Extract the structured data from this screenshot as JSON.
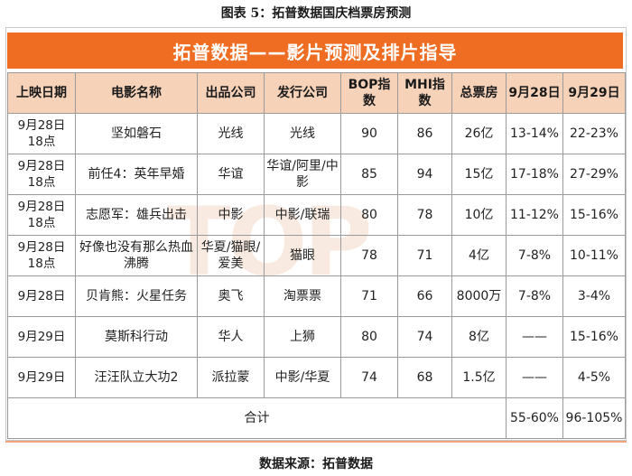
{
  "figure_title": "图表 5：拓普数据国庆档票房预测",
  "banner_title": "拓普数据——影片预测及排片指导",
  "watermark": "TOP",
  "columns": [
    "上映日期",
    "电影名称",
    "出品公司",
    "发行公司",
    "BOP指数",
    "MHI指数",
    "总票房",
    "9月28日",
    "9月29日"
  ],
  "rows": [
    {
      "date": "9月28日 18点",
      "film": "坚如磐石",
      "producer": "光线",
      "distributor": "光线",
      "bop": "90",
      "mhi": "86",
      "box_office": "26亿",
      "sep28": "13-14%",
      "sep29": "22-23%"
    },
    {
      "date": "9月28日 18点",
      "film": "前任4：英年早婚",
      "producer": "华谊",
      "distributor": "华谊/阿里/中影",
      "bop": "85",
      "mhi": "94",
      "box_office": "15亿",
      "sep28": "17-18%",
      "sep29": "27-29%"
    },
    {
      "date": "9月28日 18点",
      "film": "志愿军：雄兵出击",
      "producer": "中影",
      "distributor": "中影/联瑞",
      "bop": "80",
      "mhi": "78",
      "box_office": "10亿",
      "sep28": "11-12%",
      "sep29": "15-16%"
    },
    {
      "date": "9月28日 18点",
      "film": "好像也没有那么热血沸腾",
      "producer": "华夏/猫眼/爱美",
      "distributor": "猫眼",
      "bop": "78",
      "mhi": "71",
      "box_office": "4亿",
      "sep28": "7-8%",
      "sep29": "10-11%"
    },
    {
      "date": "9月28日",
      "film": "贝肯熊：火星任务",
      "producer": "奥飞",
      "distributor": "淘票票",
      "bop": "71",
      "mhi": "66",
      "box_office": "8000万",
      "sep28": "7-8%",
      "sep29": "3-4%"
    },
    {
      "date": "9月29日",
      "film": "莫斯科行动",
      "producer": "华人",
      "distributor": "上狮",
      "bop": "80",
      "mhi": "74",
      "box_office": "8亿",
      "sep28": "——",
      "sep29": "15-16%"
    },
    {
      "date": "9月29日",
      "film": "汪汪队立大功2",
      "producer": "派拉蒙",
      "distributor": "中影/华夏",
      "bop": "74",
      "mhi": "68",
      "box_office": "1.5亿",
      "sep28": "——",
      "sep29": "4-5%"
    }
  ],
  "total": {
    "label": "合计",
    "sep28": "55-60%",
    "sep29": "96-105%"
  },
  "source": "数据来源：拓普数据",
  "colors": {
    "banner": "#ef6d22",
    "header_bg": "#f6d2b9",
    "watermark": "#f6e3d6"
  }
}
